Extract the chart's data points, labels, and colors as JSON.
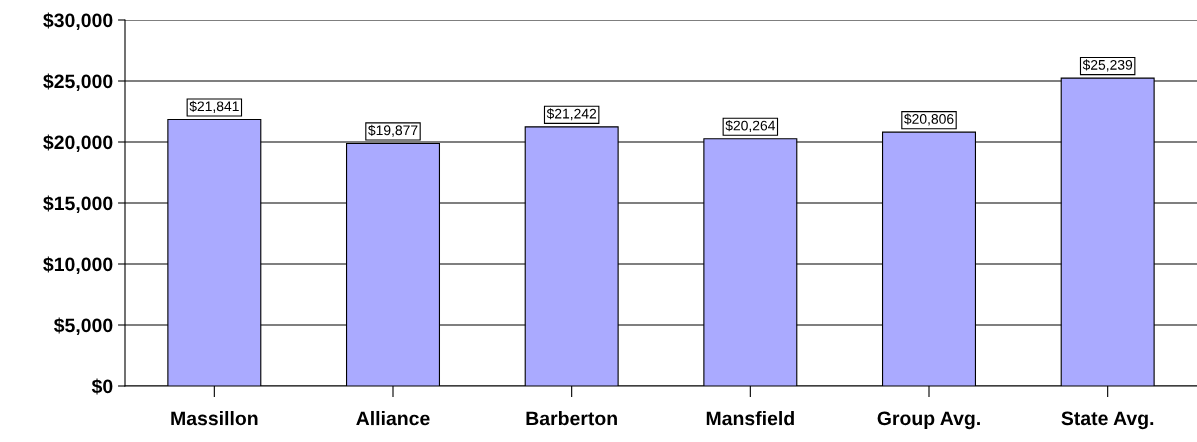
{
  "chart_data": {
    "type": "bar",
    "categories": [
      "Massillon",
      "Alliance",
      "Barberton",
      "Mansfield",
      "Group Avg.",
      "State Avg."
    ],
    "values": [
      21841,
      19877,
      21242,
      20264,
      20806,
      25239
    ],
    "value_labels": [
      "$21,841",
      "$19,877",
      "$21,242",
      "$20,264",
      "$20,806",
      "$25,239"
    ],
    "color": "#aaaaff",
    "ylim": [
      0,
      30000
    ],
    "yticks": [
      {
        "value": 0,
        "label": "$0"
      },
      {
        "value": 5000,
        "label": "$5,000"
      },
      {
        "value": 10000,
        "label": "$10,000"
      },
      {
        "value": 15000,
        "label": "$15,000"
      },
      {
        "value": 20000,
        "label": "$20,000"
      },
      {
        "value": 25000,
        "label": "$25,000"
      },
      {
        "value": 30000,
        "label": "$30,000"
      }
    ],
    "grid": "y",
    "legend": false
  }
}
